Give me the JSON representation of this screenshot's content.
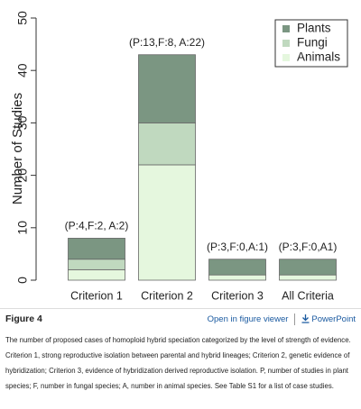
{
  "chart_data": {
    "type": "stacked-bar",
    "ylabel": "Number of Studies",
    "categories": [
      "Criterion 1",
      "Criterion 2",
      "Criterion 3",
      "All Criteria"
    ],
    "series": [
      {
        "name": "Plants",
        "color": "#7b9682",
        "values": [
          4,
          13,
          3,
          3
        ]
      },
      {
        "name": "Fungi",
        "color": "#c0d9bf",
        "values": [
          2,
          8,
          0,
          0
        ]
      },
      {
        "name": "Animals",
        "color": "#e5f7de",
        "values": [
          2,
          22,
          1,
          1
        ]
      }
    ],
    "annotations": [
      "(P:4,F:2, A:2)",
      "(P:13,F:8, A:22)",
      "(P:3,F:0,A:1)",
      "(P:3,F:0,A1)"
    ],
    "ylim": [
      0,
      50
    ],
    "yticks": [
      0,
      10,
      20,
      30,
      40,
      50
    ],
    "legend": "top-right"
  },
  "figure": {
    "label": "Figure 4",
    "viewer_link": "Open in figure viewer",
    "powerpoint_link": "PowerPoint",
    "caption": "The number of proposed cases of homoploid hybrid speciation categorized by the level of strength of evidence. Criterion 1, strong reproductive isolation between parental and hybrid lineages; Criterion 2, genetic evidence of hybridization; Criterion 3, evidence of hybridization derived reproductive isolation. P, number of studies in plant species; F, number in fungal species; A, number in animal species. See Table S1 for a list of case studies."
  }
}
